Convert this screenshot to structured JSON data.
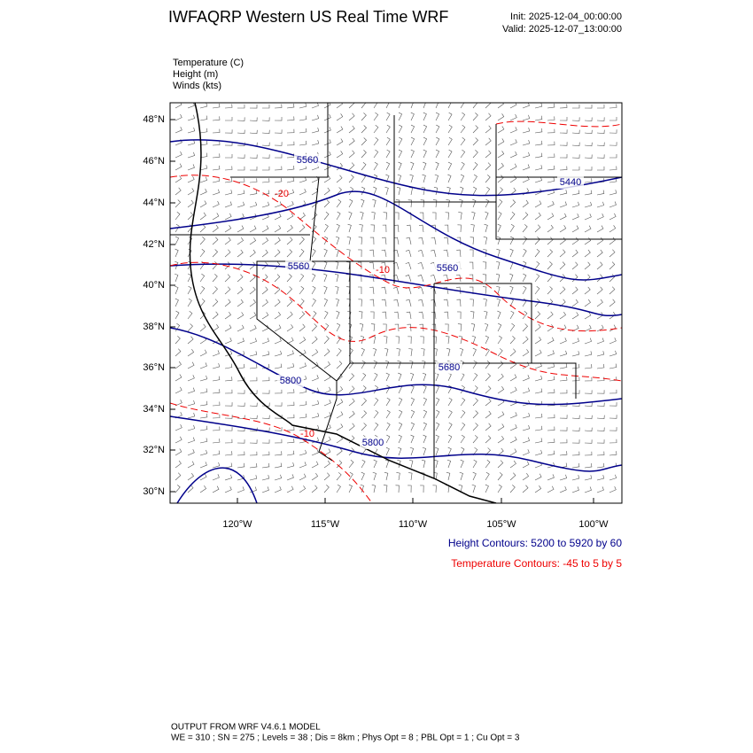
{
  "header": {
    "title": "IWFAQRP Western US Real Time WRF",
    "init": "Init: 2025-12-04_00:00:00",
    "valid": "Valid: 2025-12-07_13:00:00"
  },
  "fields": [
    "Temperature   (C)",
    "Height   (m)",
    "Winds   (kts)"
  ],
  "map": {
    "lat_labels": [
      "48°N",
      "46°N",
      "44°N",
      "42°N",
      "40°N",
      "38°N",
      "36°N",
      "34°N",
      "32°N",
      "30°N"
    ],
    "lon_labels": [
      "120°W",
      "115°W",
      "110°W",
      "105°W",
      "100°W"
    ],
    "height_labels": [
      "5560",
      "5440",
      "5560",
      "5560",
      "5680",
      "5800",
      "5800"
    ],
    "temperature_labels": [
      "-20",
      "-10",
      "-10"
    ]
  },
  "contours": {
    "height": "Height Contours: 5200 to 5920 by 60",
    "temperature": "Temperature Contours: -45 to 5 by 5"
  },
  "footer": {
    "model": "OUTPUT FROM WRF V4.6.1 MODEL",
    "config": "WE = 310 ; SN = 275 ; Levels = 38 ; Dis = 8km ; Phys Opt = 8 ; PBL Opt = 1 ; Cu Opt = 3"
  }
}
